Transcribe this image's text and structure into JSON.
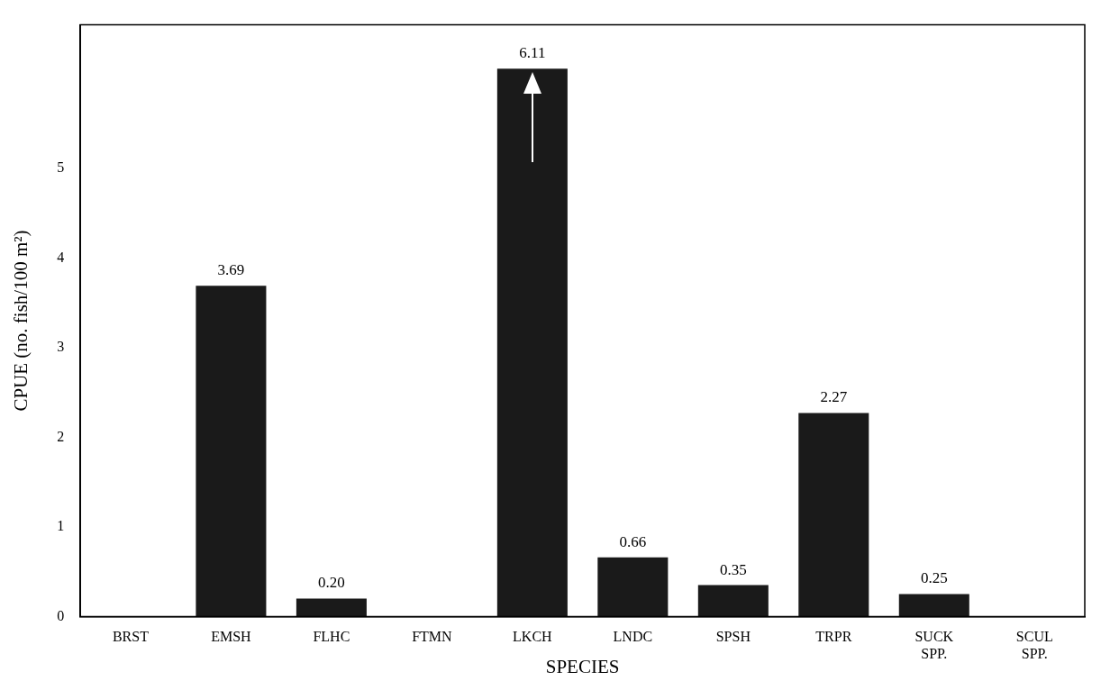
{
  "chart_data": {
    "type": "bar",
    "xlabel": "SPECIES",
    "ylabel": "CPUE (no. fish/100 m²)",
    "categories": [
      "BRST",
      "EMSH",
      "FLHC",
      "FTMN",
      "LKCH",
      "LNDC",
      "SPSH",
      "TRPR",
      "SUCK SPP.",
      "SCUL SPP."
    ],
    "values": [
      0,
      3.69,
      0.2,
      0,
      6.11,
      0.66,
      0.35,
      2.27,
      0.25,
      0
    ],
    "value_labels": [
      null,
      "3.69",
      "0.20",
      null,
      "6.11",
      "0.66",
      "0.35",
      "2.27",
      "0.25",
      null
    ],
    "color": "#1a1a1a",
    "ylim": [
      0,
      6.6
    ],
    "yticks": [
      0,
      1,
      2,
      3,
      4,
      5
    ],
    "grid": false
  }
}
